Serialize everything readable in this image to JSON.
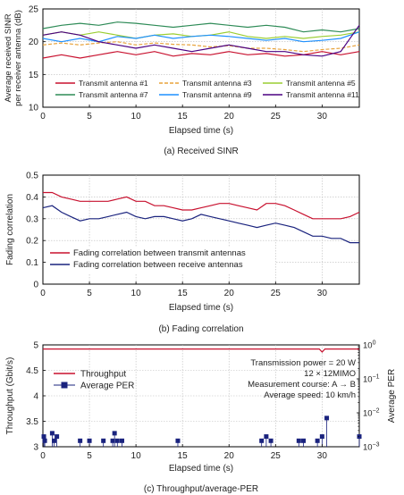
{
  "figure": {
    "captions": [
      "(a) Received SINR",
      "(b) Fading correlation",
      "(c) Throughput/average-PER"
    ]
  },
  "chart_data": [
    {
      "type": "line",
      "caption": "(a) Received SINR",
      "xlabel": "Elapsed time (s)",
      "ylabel_lines": [
        "Average received SINR",
        "per receiver antenna (dB)"
      ],
      "xlim": [
        0,
        34
      ],
      "ylim": [
        10,
        25
      ],
      "xticks": [
        "0",
        "5",
        "10",
        "15",
        "20",
        "25",
        "30"
      ],
      "yticks": [
        "10",
        "15",
        "20",
        "25"
      ],
      "grid": true,
      "legend_position": "lower-center",
      "series": [
        {
          "name": "Transmit antenna #1",
          "color": "#c8102e",
          "dash": "solid",
          "x": [
            0,
            2,
            4,
            6,
            8,
            10,
            12,
            14,
            16,
            18,
            20,
            22,
            24,
            26,
            28,
            30,
            32,
            34
          ],
          "y": [
            17.5,
            18,
            17.5,
            18,
            18.5,
            18,
            18.5,
            17.8,
            18.2,
            18,
            18.5,
            18,
            18.2,
            17.8,
            18,
            18.5,
            18,
            18.5
          ]
        },
        {
          "name": "Transmit antenna #3",
          "color": "#e8a33c",
          "dash": "4,2",
          "x": [
            0,
            2,
            4,
            6,
            8,
            10,
            12,
            14,
            16,
            18,
            20,
            22,
            24,
            26,
            28,
            30,
            32,
            34
          ],
          "y": [
            19.5,
            19.8,
            19.5,
            19.8,
            20,
            19.5,
            19.8,
            19.6,
            19.5,
            19.2,
            19.4,
            19,
            19,
            18.8,
            18.5,
            18.8,
            19,
            19.5
          ]
        },
        {
          "name": "Transmit antenna #5",
          "color": "#9acd32",
          "dash": "solid",
          "x": [
            0,
            2,
            4,
            6,
            8,
            10,
            12,
            14,
            16,
            18,
            20,
            22,
            24,
            26,
            28,
            30,
            32,
            34
          ],
          "y": [
            21,
            21.5,
            21,
            21.5,
            21,
            20.5,
            21,
            21.2,
            20.8,
            21,
            21.5,
            20.8,
            20.5,
            20.8,
            20.5,
            20.8,
            21,
            21.5
          ]
        },
        {
          "name": "Transmit antenna #7",
          "color": "#2e8b57",
          "dash": "solid",
          "x": [
            0,
            2,
            4,
            6,
            8,
            10,
            12,
            14,
            16,
            18,
            20,
            22,
            24,
            26,
            28,
            30,
            32,
            34
          ],
          "y": [
            22,
            22.5,
            22.8,
            22.5,
            23,
            22.8,
            22.5,
            22.2,
            22.5,
            22.8,
            22.5,
            22.2,
            22.5,
            22.2,
            21.5,
            21.8,
            21.5,
            22
          ]
        },
        {
          "name": "Transmit antenna #9",
          "color": "#1e90ff",
          "dash": "solid",
          "x": [
            0,
            2,
            4,
            6,
            8,
            10,
            12,
            14,
            16,
            18,
            20,
            22,
            24,
            26,
            28,
            30,
            32,
            34
          ],
          "y": [
            20.5,
            20,
            20.5,
            20,
            20.8,
            20.5,
            21,
            20.5,
            20.8,
            21,
            20.8,
            20.5,
            20.2,
            20.5,
            20,
            20.2,
            20.5,
            21.5
          ]
        },
        {
          "name": "Transmit antenna #11",
          "color": "#4b0082",
          "dash": "solid",
          "x": [
            0,
            2,
            4,
            6,
            8,
            10,
            12,
            14,
            16,
            18,
            20,
            22,
            24,
            26,
            28,
            30,
            32,
            34
          ],
          "y": [
            21,
            21.5,
            21,
            20,
            19.5,
            19,
            19.5,
            19,
            18.5,
            19,
            19.5,
            19,
            18.5,
            18.5,
            18,
            17.8,
            18.5,
            22.5
          ]
        }
      ]
    },
    {
      "type": "line",
      "caption": "(b) Fading correlation",
      "xlabel": "Elapsed time (s)",
      "ylabel": "Fading correlation",
      "xlim": [
        0,
        34
      ],
      "ylim": [
        0,
        0.5
      ],
      "xticks": [
        "0",
        "5",
        "10",
        "15",
        "20",
        "25",
        "30"
      ],
      "yticks": [
        "0",
        "0.1",
        "0.2",
        "0.3",
        "0.4",
        "0.5"
      ],
      "grid": true,
      "legend_position": "lower-left",
      "series": [
        {
          "name": "Fading correlation between transmit antennas",
          "color": "#c8102e",
          "x": [
            0,
            1,
            2,
            3,
            4,
            5,
            6,
            7,
            8,
            9,
            10,
            11,
            12,
            13,
            14,
            15,
            16,
            17,
            18,
            19,
            20,
            21,
            22,
            23,
            24,
            25,
            26,
            27,
            28,
            29,
            30,
            31,
            32,
            33,
            34
          ],
          "y": [
            0.42,
            0.42,
            0.4,
            0.39,
            0.38,
            0.38,
            0.38,
            0.38,
            0.39,
            0.4,
            0.38,
            0.38,
            0.36,
            0.36,
            0.35,
            0.34,
            0.34,
            0.35,
            0.36,
            0.37,
            0.37,
            0.36,
            0.35,
            0.34,
            0.37,
            0.37,
            0.36,
            0.34,
            0.32,
            0.3,
            0.3,
            0.3,
            0.3,
            0.31,
            0.33
          ]
        },
        {
          "name": "Fading correlation between receive antennas",
          "color": "#1a237e",
          "x": [
            0,
            1,
            2,
            3,
            4,
            5,
            6,
            7,
            8,
            9,
            10,
            11,
            12,
            13,
            14,
            15,
            16,
            17,
            18,
            19,
            20,
            21,
            22,
            23,
            24,
            25,
            26,
            27,
            28,
            29,
            30,
            31,
            32,
            33,
            34
          ],
          "y": [
            0.35,
            0.36,
            0.33,
            0.31,
            0.29,
            0.3,
            0.3,
            0.31,
            0.32,
            0.33,
            0.31,
            0.3,
            0.31,
            0.31,
            0.3,
            0.29,
            0.3,
            0.32,
            0.31,
            0.3,
            0.29,
            0.28,
            0.27,
            0.26,
            0.27,
            0.28,
            0.27,
            0.26,
            0.24,
            0.22,
            0.22,
            0.21,
            0.21,
            0.19,
            0.19
          ]
        }
      ]
    },
    {
      "type": "line",
      "caption": "(c) Throughput/average-PER",
      "xlabel": "Elapsed time (s)",
      "ylabel": "Throughput (Gbit/s)",
      "ylabel_right": "Average PER",
      "xlim": [
        0,
        34
      ],
      "ylim": [
        3,
        5
      ],
      "ylim_right": [
        0.001,
        1
      ],
      "y_right_scale": "log",
      "xticks": [
        "0",
        "5",
        "10",
        "15",
        "20",
        "25",
        "30"
      ],
      "yticks": [
        "3",
        "3.5",
        "4",
        "4.5",
        "5"
      ],
      "yticks_right": [
        {
          "base": "10",
          "exp": "0"
        },
        {
          "base": "10",
          "exp": "−1"
        },
        {
          "base": "10",
          "exp": "−2"
        },
        {
          "base": "10",
          "exp": "−3"
        }
      ],
      "grid": true,
      "legend_position": "upper-left",
      "annotations": [
        "Transmission power = 20 W",
        "12 × 12MIMO",
        "Measurement course: A → B",
        "Average speed: 10 km/h"
      ],
      "series": [
        {
          "name": "Throughput",
          "color": "#c8102e",
          "axis": "left",
          "x": [
            0,
            29.7,
            30,
            30.3,
            34
          ],
          "y": [
            4.92,
            4.92,
            4.86,
            4.92,
            4.92
          ]
        },
        {
          "name": "Average PER",
          "color": "#1a237e",
          "axis": "right",
          "marker": "square",
          "x": [
            0.1,
            0.2,
            1,
            1.2,
            1.5,
            4,
            5,
            6.5,
            7.5,
            7.7,
            8,
            8.5,
            14.5,
            23.5,
            24,
            24.5,
            27.5,
            28,
            29.5,
            30,
            30.5,
            34
          ],
          "y": [
            0.002,
            0.0015,
            0.0025,
            0.0015,
            0.002,
            0.0015,
            0.0015,
            0.0015,
            0.0015,
            0.0025,
            0.0015,
            0.0015,
            0.0015,
            0.0015,
            0.002,
            0.0015,
            0.0015,
            0.0015,
            0.0015,
            0.002,
            0.007,
            0.002
          ]
        }
      ]
    }
  ]
}
